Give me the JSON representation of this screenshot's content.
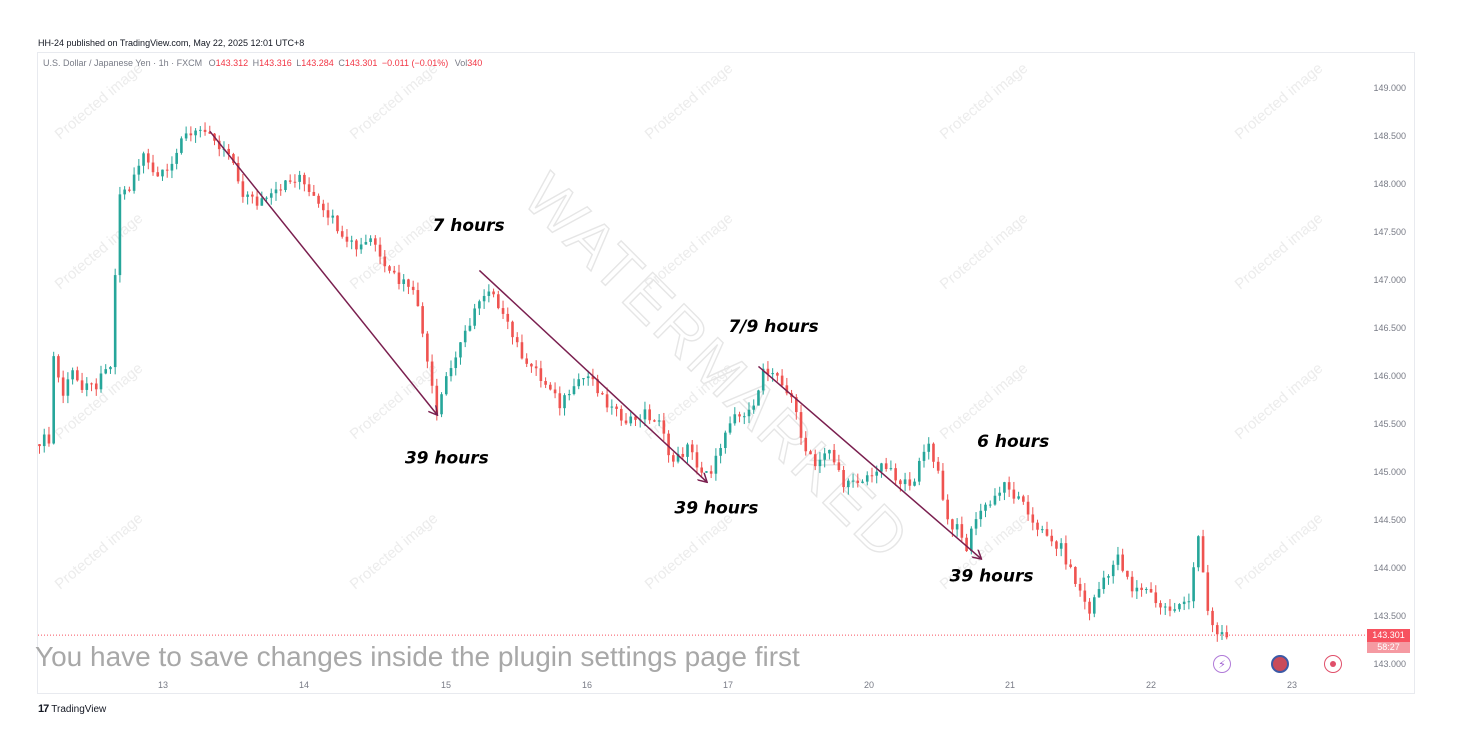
{
  "header": {
    "published": "HH-24 published on TradingView.com, May 22, 2025 12:01 UTC+8"
  },
  "legend": {
    "symbol": "U.S. Dollar / Japanese Yen · 1h · FXCM",
    "open_label": "O",
    "open": "143.312",
    "high_label": "H",
    "high": "143.316",
    "low_label": "L",
    "low": "143.284",
    "close_label": "C",
    "close": "143.301",
    "change": "−0.011 (−0.01%)",
    "volume_label": "Vol",
    "volume": "340"
  },
  "price_tag": {
    "price": "143.301",
    "countdown": "58:27"
  },
  "plugin_message": "You have to save changes inside the plugin settings page first",
  "footer": {
    "logo_text": "TradingView"
  },
  "watermark": {
    "main": "WATERMARKED",
    "tile": "Protected image"
  },
  "colors": {
    "up": "#26a69a",
    "down": "#ef5350",
    "arrow": "#7a1f4f",
    "grid": "#f0f3fa",
    "axis_text": "#787b86"
  },
  "icons": [
    "flash-icon",
    "us-flag-icon",
    "record-icon",
    "tradingview-logo-icon"
  ],
  "chart_data": {
    "type": "candlestick",
    "ylim": [
      143.0,
      149.0
    ],
    "y_ticks": [
      "149.000",
      "148.500",
      "148.000",
      "147.500",
      "147.000",
      "146.500",
      "146.000",
      "145.500",
      "145.000",
      "144.500",
      "144.000",
      "143.500",
      "143.000"
    ],
    "x_ticks": [
      "13",
      "14",
      "15",
      "16",
      "17",
      "20",
      "21",
      "22",
      "23"
    ],
    "last_price": 143.301,
    "close_path": [
      [
        0,
        145.33
      ],
      [
        2,
        145.35
      ],
      [
        3,
        146.2
      ],
      [
        5,
        145.8
      ],
      [
        7,
        146.1
      ],
      [
        9,
        145.85
      ],
      [
        12,
        145.9
      ],
      [
        15,
        146.1
      ],
      [
        17,
        147.9
      ],
      [
        19,
        147.95
      ],
      [
        22,
        148.3
      ],
      [
        25,
        148.1
      ],
      [
        28,
        148.25
      ],
      [
        31,
        148.5
      ],
      [
        34,
        148.6
      ],
      [
        37,
        148.4
      ],
      [
        40,
        148.3
      ],
      [
        43,
        147.9
      ],
      [
        46,
        147.8
      ],
      [
        49,
        147.95
      ],
      [
        52,
        148.0
      ],
      [
        55,
        148.05
      ],
      [
        58,
        147.9
      ],
      [
        61,
        147.7
      ],
      [
        64,
        147.5
      ],
      [
        67,
        147.35
      ],
      [
        70,
        147.45
      ],
      [
        73,
        147.2
      ],
      [
        76,
        147.0
      ],
      [
        79,
        146.95
      ],
      [
        82,
        146.2
      ],
      [
        84,
        145.65
      ],
      [
        86,
        146.0
      ],
      [
        89,
        146.3
      ],
      [
        92,
        146.7
      ],
      [
        95,
        146.85
      ],
      [
        98,
        146.7
      ],
      [
        101,
        146.3
      ],
      [
        104,
        146.1
      ],
      [
        107,
        145.9
      ],
      [
        110,
        145.7
      ],
      [
        113,
        145.95
      ],
      [
        116,
        146.0
      ],
      [
        119,
        145.75
      ],
      [
        122,
        145.6
      ],
      [
        125,
        145.55
      ],
      [
        128,
        145.6
      ],
      [
        131,
        145.5
      ],
      [
        134,
        145.1
      ],
      [
        137,
        145.25
      ],
      [
        140,
        145.0
      ],
      [
        142,
        144.95
      ],
      [
        144,
        145.3
      ],
      [
        147,
        145.55
      ],
      [
        150,
        145.6
      ],
      [
        153,
        146.05
      ],
      [
        156,
        145.95
      ],
      [
        159,
        145.8
      ],
      [
        161,
        145.35
      ],
      [
        164,
        145.1
      ],
      [
        167,
        145.2
      ],
      [
        170,
        144.9
      ],
      [
        173,
        144.85
      ],
      [
        176,
        145.0
      ],
      [
        179,
        145.05
      ],
      [
        182,
        144.85
      ],
      [
        185,
        144.95
      ],
      [
        188,
        145.3
      ],
      [
        190,
        145.0
      ],
      [
        192,
        144.5
      ],
      [
        194,
        144.4
      ],
      [
        196,
        144.2
      ],
      [
        198,
        144.55
      ],
      [
        201,
        144.7
      ],
      [
        204,
        144.85
      ],
      [
        207,
        144.7
      ],
      [
        210,
        144.5
      ],
      [
        213,
        144.3
      ],
      [
        216,
        144.2
      ],
      [
        219,
        143.85
      ],
      [
        222,
        143.55
      ],
      [
        225,
        143.9
      ],
      [
        228,
        144.1
      ],
      [
        231,
        143.75
      ],
      [
        234,
        143.8
      ],
      [
        237,
        143.6
      ],
      [
        240,
        143.55
      ],
      [
        243,
        143.7
      ],
      [
        245,
        144.35
      ],
      [
        247,
        143.5
      ],
      [
        249,
        143.3
      ],
      [
        251,
        143.3
      ]
    ],
    "annotations": [
      {
        "label": "39 hours",
        "from": [
          36,
          148.55
        ],
        "to": [
          84,
          145.6
        ]
      },
      {
        "label": "7 hours",
        "ref": [
          89,
          147.55
        ]
      },
      {
        "label": "39 hours",
        "from": [
          93,
          147.1
        ],
        "to": [
          141,
          144.9
        ]
      },
      {
        "label": "7/9 hours",
        "ref": [
          152,
          146.5
        ]
      },
      {
        "label": "39 hours",
        "from": [
          152,
          146.1
        ],
        "to": [
          199,
          144.1
        ]
      },
      {
        "label": "6 hours",
        "ref": [
          205,
          145.3
        ]
      },
      {
        "label": "39 hours",
        "ref": [
          200,
          143.9
        ]
      }
    ]
  }
}
